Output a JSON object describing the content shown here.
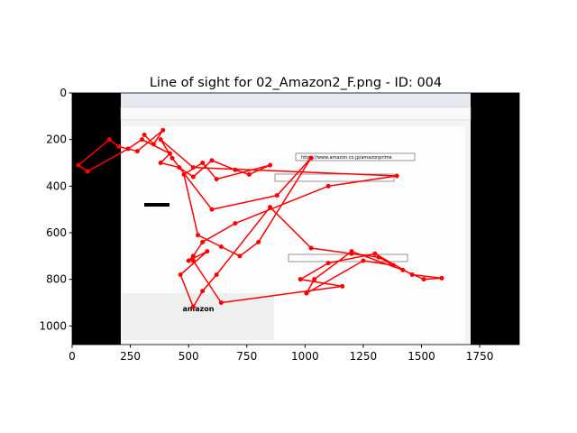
{
  "chart_data": {
    "type": "line",
    "title": "Line of sight for 02_Amazon2_F.png - ID: 004",
    "image_texts": [
      "https://www.amazon.co.jp/amazonprime",
      "amazon"
    ],
    "xlim": [
      0,
      1920
    ],
    "ylim": [
      1080,
      0
    ],
    "xticks": [
      0,
      250,
      500,
      750,
      1000,
      1250,
      1500,
      1750
    ],
    "yticks": [
      0,
      200,
      400,
      600,
      800,
      1000
    ],
    "series": [
      {
        "color": "#ff0000",
        "x": [
          310,
          350,
          390,
          280,
          200,
          160,
          27,
          66,
          240,
          300,
          420,
          380,
          460,
          520,
          600,
          700,
          760,
          850,
          620,
          560,
          480,
          540,
          640,
          720,
          800,
          1026,
          880,
          600,
          430,
          380,
          520,
          1394,
          1100,
          700,
          560,
          520,
          500,
          580,
          465,
          520,
          560,
          620,
          850,
          1026,
          1200,
          1316,
          1380,
          1250,
          1006,
          1040,
          1200,
          1420,
          1510,
          1587,
          1460,
          1300,
          1100,
          980,
          1160,
          640,
          520
        ],
        "values": [
          180,
          220,
          160,
          250,
          230,
          200,
          310,
          337,
          240,
          200,
          260,
          300,
          320,
          360,
          290,
          330,
          350,
          310,
          370,
          300,
          350,
          610,
          660,
          700,
          640,
          279,
          440,
          500,
          280,
          200,
          320,
          356,
          400,
          560,
          640,
          700,
          720,
          680,
          780,
          918,
          850,
          780,
          490,
          666,
          690,
          705,
          740,
          720,
          860,
          800,
          680,
          760,
          800,
          795,
          780,
          690,
          730,
          800,
          830,
          900,
          720
        ]
      }
    ]
  }
}
